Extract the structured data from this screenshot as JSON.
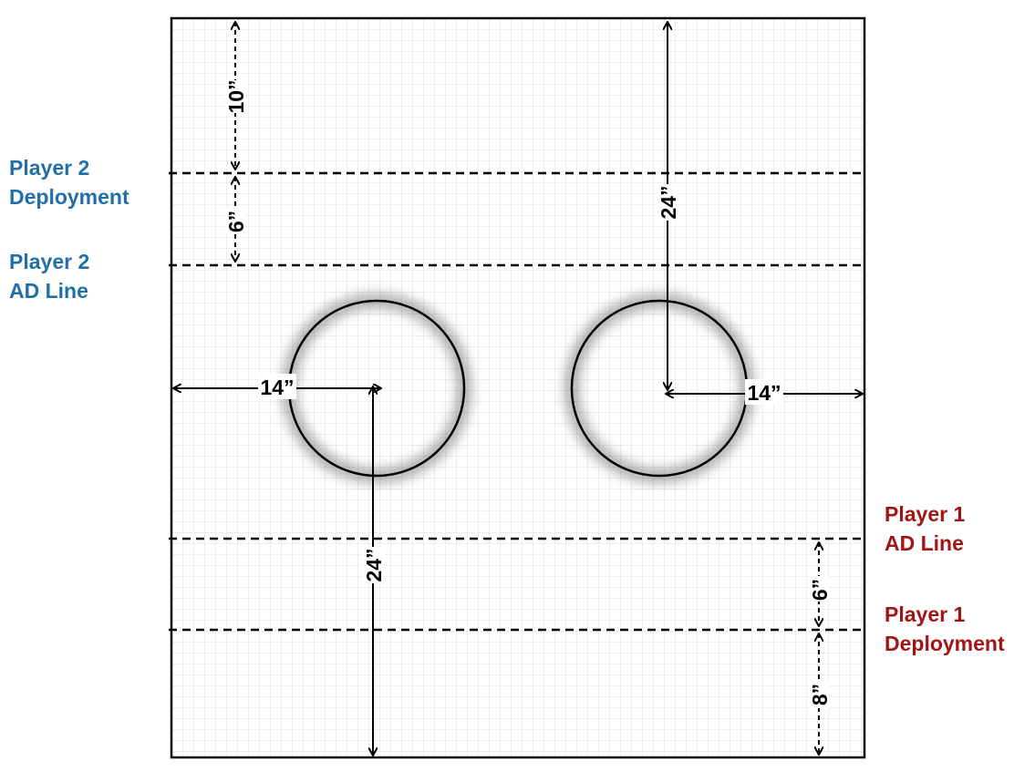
{
  "labels": {
    "player2_deployment": {
      "line1": "Player 2",
      "line2": "Deployment"
    },
    "player2_ad_line": {
      "line1": "Player 2",
      "line2": "AD Line"
    },
    "player1_ad_line": {
      "line1": "Player 1",
      "line2": "AD Line"
    },
    "player1_deployment": {
      "line1": "Player 1",
      "line2": "Deployment"
    }
  },
  "measurements": {
    "p2_edge_gap": "10”",
    "p2_zone_gap": "6”",
    "right_objective_depth": "24”",
    "left_objective_side": "14”",
    "right_objective_side": "14”",
    "left_objective_depth": "24”",
    "p1_zone_gap": "6”",
    "p1_edge_gap": "8”"
  },
  "colors": {
    "player2": "#1f6fa8",
    "player2_glow": "#5aa8e0",
    "player1": "#a31515",
    "player1_glow": "#e06a6a",
    "grid": "#d9d9d9",
    "border": "#000000"
  }
}
